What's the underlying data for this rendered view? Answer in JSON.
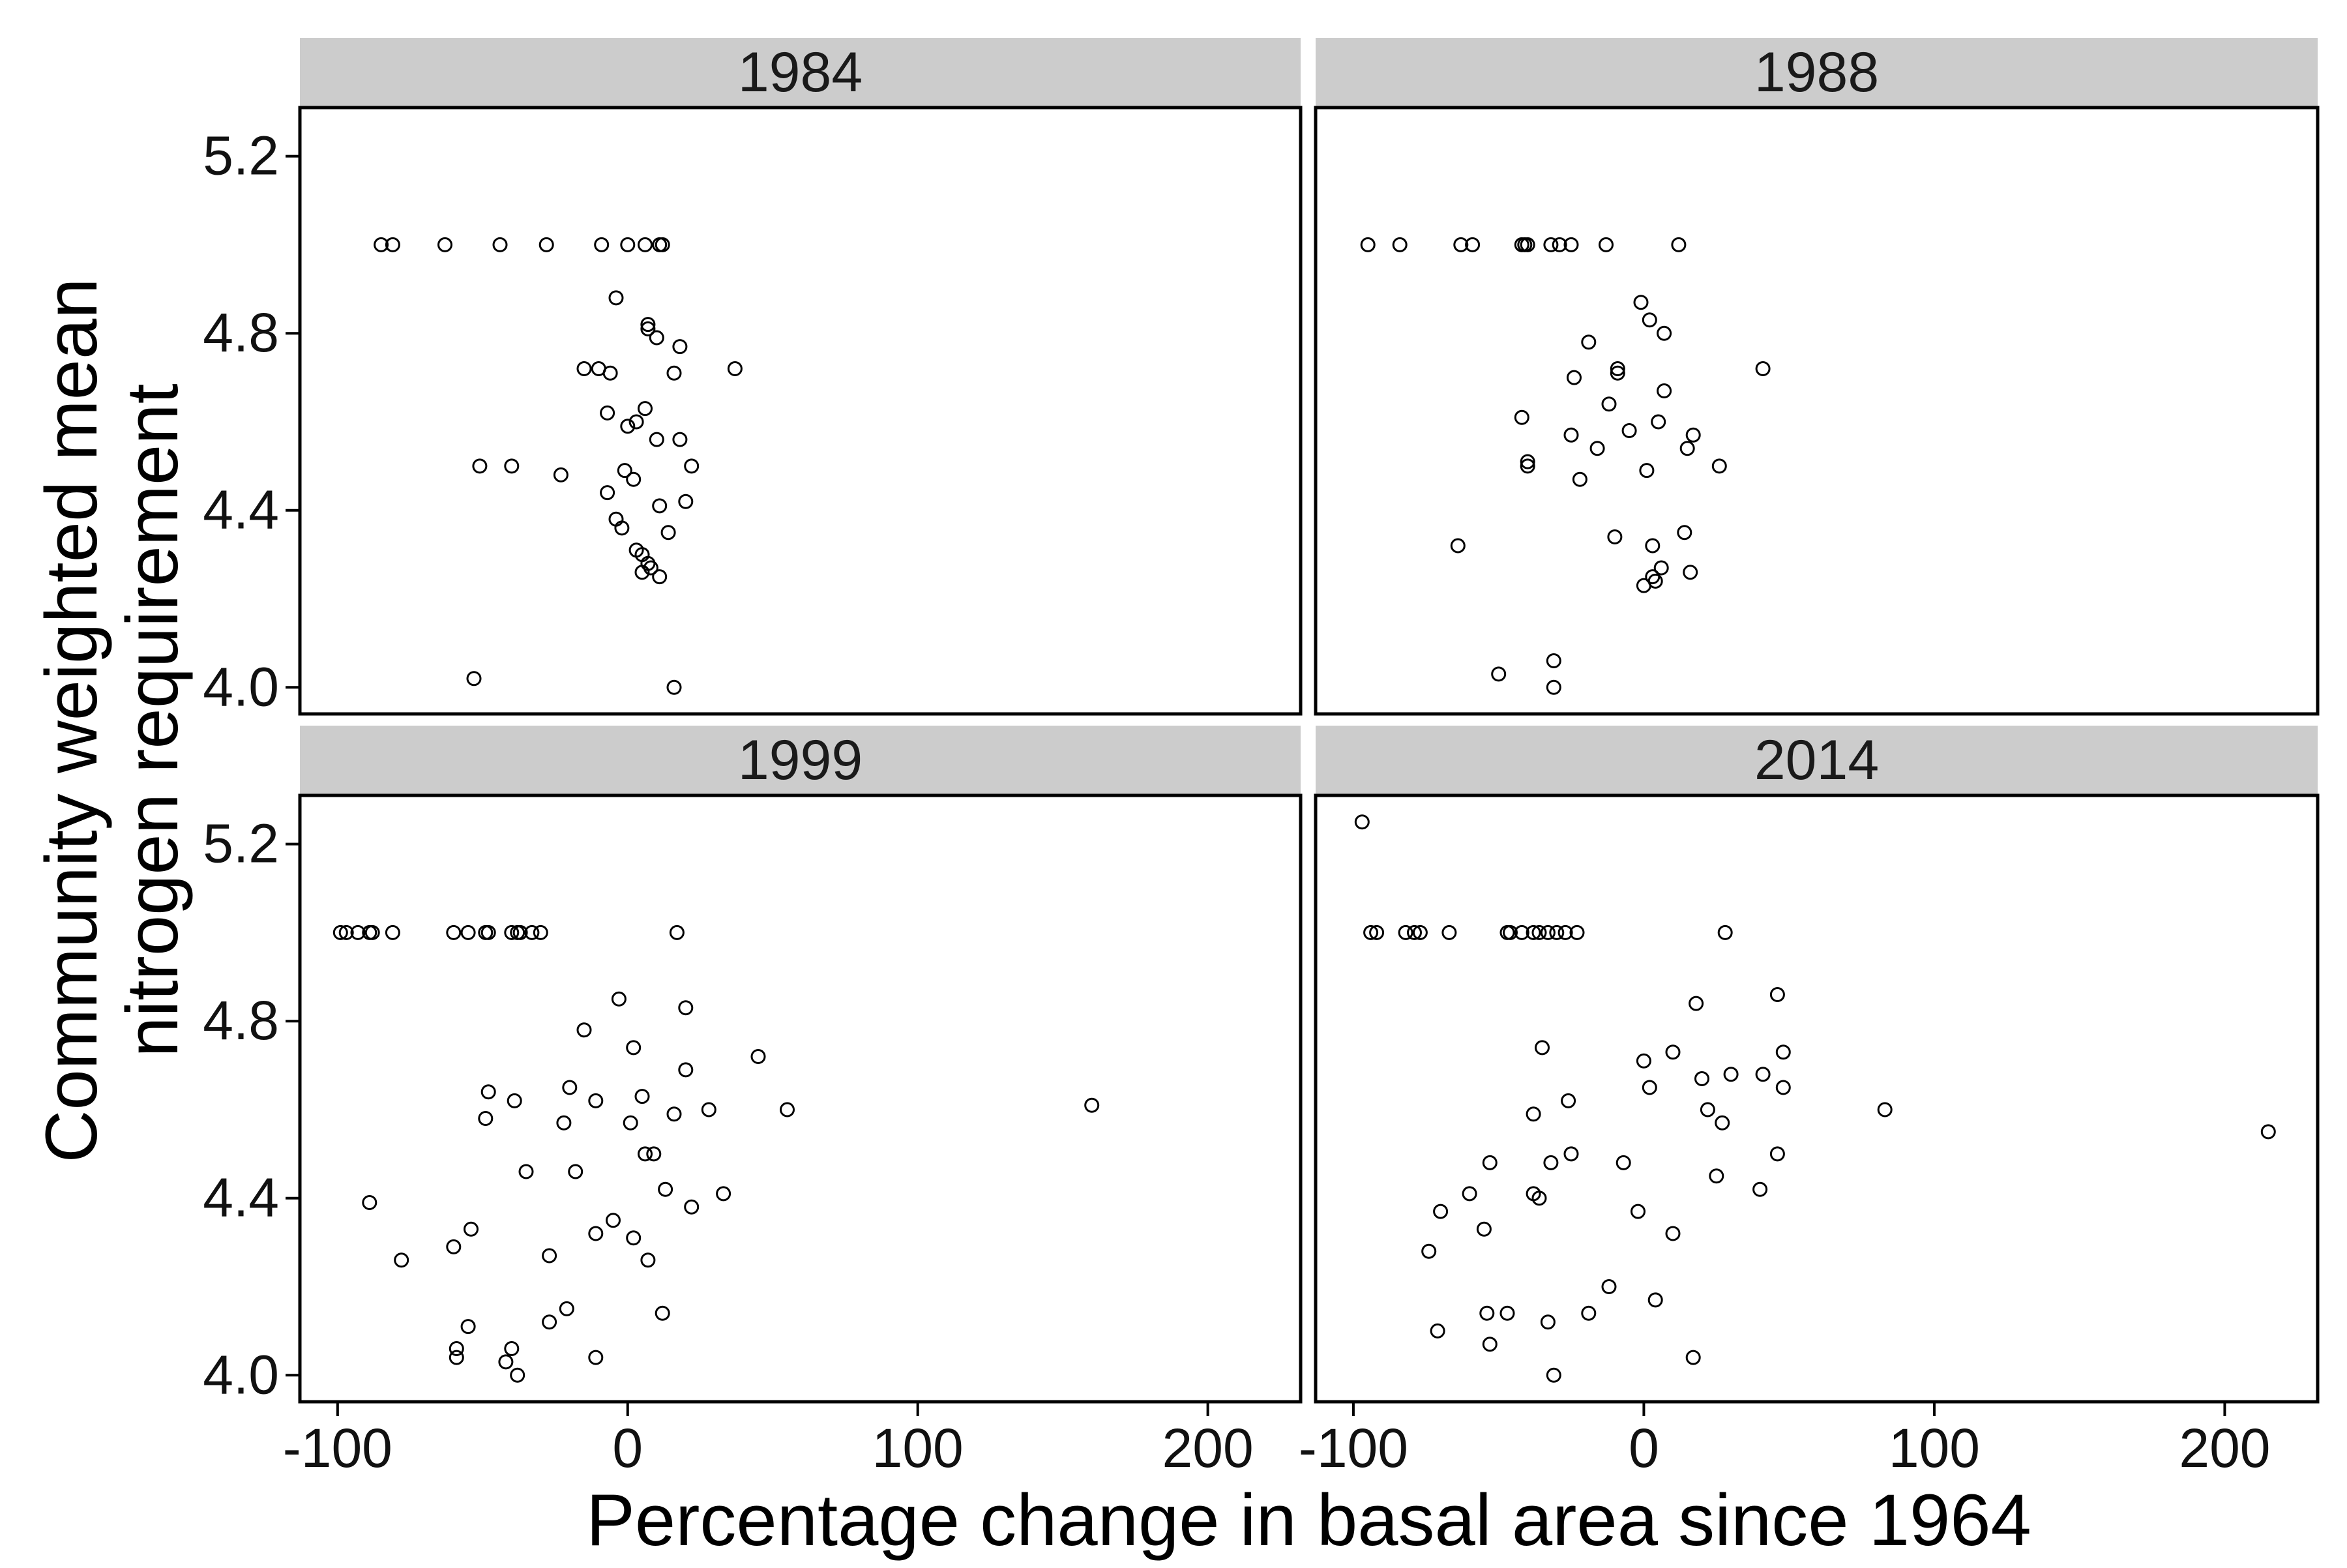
{
  "chart_data": {
    "type": "scatter",
    "layout": "faceted 2x2 grid, shared axes",
    "xlabel": "Percentage change in basal area since 1964",
    "ylabel_lines": [
      "Community weighted mean",
      "nitrogen requirement"
    ],
    "xlim": [
      -113,
      232
    ],
    "ylim": [
      3.94,
      5.31
    ],
    "xticks": [
      -100,
      0,
      100,
      200
    ],
    "xtick_labels": [
      "-100",
      "0",
      "100",
      "200"
    ],
    "yticks": [
      4.0,
      4.4,
      4.8,
      5.2
    ],
    "ytick_labels": [
      "4.0",
      "4.4",
      "4.8",
      "5.2"
    ],
    "grid": false,
    "legend": "none",
    "marker": "open circle",
    "colors": {
      "strip_background": "#cccccc",
      "panel_border": "#000000",
      "point_stroke": "#000000",
      "background": "#ffffff"
    },
    "panels": [
      {
        "title": "1984",
        "points": [
          [
            -85,
            5.0
          ],
          [
            -81,
            5.0
          ],
          [
            -63,
            5.0
          ],
          [
            -44,
            5.0
          ],
          [
            -28,
            5.0
          ],
          [
            -9,
            5.0
          ],
          [
            0,
            5.0
          ],
          [
            6,
            5.0
          ],
          [
            11,
            5.0
          ],
          [
            12,
            5.0
          ],
          [
            -4,
            4.88
          ],
          [
            7,
            4.82
          ],
          [
            7,
            4.81
          ],
          [
            10,
            4.79
          ],
          [
            18,
            4.77
          ],
          [
            -15,
            4.72
          ],
          [
            -10,
            4.72
          ],
          [
            -6,
            4.71
          ],
          [
            16,
            4.71
          ],
          [
            37,
            4.72
          ],
          [
            6,
            4.63
          ],
          [
            -7,
            4.62
          ],
          [
            3,
            4.6
          ],
          [
            0,
            4.59
          ],
          [
            10,
            4.56
          ],
          [
            18,
            4.56
          ],
          [
            -51,
            4.5
          ],
          [
            -40,
            4.5
          ],
          [
            22,
            4.5
          ],
          [
            -23,
            4.48
          ],
          [
            -1,
            4.49
          ],
          [
            2,
            4.47
          ],
          [
            -7,
            4.44
          ],
          [
            20,
            4.42
          ],
          [
            11,
            4.41
          ],
          [
            -4,
            4.38
          ],
          [
            -2,
            4.36
          ],
          [
            14,
            4.35
          ],
          [
            3,
            4.31
          ],
          [
            5,
            4.3
          ],
          [
            7,
            4.28
          ],
          [
            8,
            4.27
          ],
          [
            5,
            4.26
          ],
          [
            11,
            4.25
          ],
          [
            -53,
            4.02
          ],
          [
            16,
            4.0
          ]
        ]
      },
      {
        "title": "1988",
        "points": [
          [
            -95,
            5.0
          ],
          [
            -84,
            5.0
          ],
          [
            -63,
            5.0
          ],
          [
            -59,
            5.0
          ],
          [
            -42,
            5.0
          ],
          [
            -41,
            5.0
          ],
          [
            -40,
            5.0
          ],
          [
            -32,
            5.0
          ],
          [
            -29,
            5.0
          ],
          [
            -25,
            5.0
          ],
          [
            -13,
            5.0
          ],
          [
            12,
            5.0
          ],
          [
            -1,
            4.87
          ],
          [
            2,
            4.83
          ],
          [
            7,
            4.8
          ],
          [
            -19,
            4.78
          ],
          [
            -9,
            4.72
          ],
          [
            -9,
            4.71
          ],
          [
            -24,
            4.7
          ],
          [
            41,
            4.72
          ],
          [
            7,
            4.67
          ],
          [
            -12,
            4.64
          ],
          [
            -42,
            4.61
          ],
          [
            5,
            4.6
          ],
          [
            -5,
            4.58
          ],
          [
            -25,
            4.57
          ],
          [
            17,
            4.57
          ],
          [
            -16,
            4.54
          ],
          [
            15,
            4.54
          ],
          [
            -40,
            4.51
          ],
          [
            -40,
            4.5
          ],
          [
            1,
            4.49
          ],
          [
            26,
            4.5
          ],
          [
            -22,
            4.47
          ],
          [
            -10,
            4.34
          ],
          [
            14,
            4.35
          ],
          [
            -64,
            4.32
          ],
          [
            3,
            4.32
          ],
          [
            6,
            4.27
          ],
          [
            16,
            4.26
          ],
          [
            3,
            4.25
          ],
          [
            4,
            4.24
          ],
          [
            0,
            4.23
          ],
          [
            -31,
            4.06
          ],
          [
            -50,
            4.03
          ],
          [
            -31,
            4.0
          ]
        ]
      },
      {
        "title": "1999",
        "points": [
          [
            -99,
            5.0
          ],
          [
            -97,
            5.0
          ],
          [
            -93,
            5.0
          ],
          [
            -89,
            5.0
          ],
          [
            -88,
            5.0
          ],
          [
            -81,
            5.0
          ],
          [
            -60,
            5.0
          ],
          [
            -55,
            5.0
          ],
          [
            -49,
            5.0
          ],
          [
            -48,
            5.0
          ],
          [
            -40,
            5.0
          ],
          [
            -38,
            5.0
          ],
          [
            -37,
            5.0
          ],
          [
            -33,
            5.0
          ],
          [
            -30,
            5.0
          ],
          [
            17,
            5.0
          ],
          [
            -3,
            4.85
          ],
          [
            20,
            4.83
          ],
          [
            -15,
            4.78
          ],
          [
            2,
            4.74
          ],
          [
            45,
            4.72
          ],
          [
            20,
            4.69
          ],
          [
            -48,
            4.64
          ],
          [
            -20,
            4.65
          ],
          [
            -39,
            4.62
          ],
          [
            -11,
            4.62
          ],
          [
            5,
            4.63
          ],
          [
            55,
            4.6
          ],
          [
            160,
            4.61
          ],
          [
            28,
            4.6
          ],
          [
            -49,
            4.58
          ],
          [
            -22,
            4.57
          ],
          [
            1,
            4.57
          ],
          [
            16,
            4.59
          ],
          [
            6,
            4.5
          ],
          [
            9,
            4.5
          ],
          [
            -18,
            4.46
          ],
          [
            -35,
            4.46
          ],
          [
            13,
            4.42
          ],
          [
            33,
            4.41
          ],
          [
            -89,
            4.39
          ],
          [
            22,
            4.38
          ],
          [
            -5,
            4.35
          ],
          [
            -54,
            4.33
          ],
          [
            -11,
            4.32
          ],
          [
            2,
            4.31
          ],
          [
            -60,
            4.29
          ],
          [
            -27,
            4.27
          ],
          [
            -78,
            4.26
          ],
          [
            7,
            4.26
          ],
          [
            -21,
            4.15
          ],
          [
            12,
            4.14
          ],
          [
            -27,
            4.12
          ],
          [
            -55,
            4.11
          ],
          [
            -59,
            4.06
          ],
          [
            -40,
            4.06
          ],
          [
            -59,
            4.04
          ],
          [
            -42,
            4.03
          ],
          [
            -11,
            4.04
          ],
          [
            -38,
            4.0
          ]
        ]
      },
      {
        "title": "2014",
        "points": [
          [
            -97,
            5.25
          ],
          [
            -94,
            5.0
          ],
          [
            -92,
            5.0
          ],
          [
            -82,
            5.0
          ],
          [
            -79,
            5.0
          ],
          [
            -77,
            5.0
          ],
          [
            -67,
            5.0
          ],
          [
            -47,
            5.0
          ],
          [
            -46,
            5.0
          ],
          [
            -42,
            5.0
          ],
          [
            -38,
            5.0
          ],
          [
            -36,
            5.0
          ],
          [
            -33,
            5.0
          ],
          [
            -30,
            5.0
          ],
          [
            -27,
            5.0
          ],
          [
            -23,
            5.0
          ],
          [
            28,
            5.0
          ],
          [
            46,
            4.86
          ],
          [
            18,
            4.84
          ],
          [
            -35,
            4.74
          ],
          [
            10,
            4.73
          ],
          [
            48,
            4.73
          ],
          [
            0,
            4.71
          ],
          [
            41,
            4.68
          ],
          [
            30,
            4.68
          ],
          [
            20,
            4.67
          ],
          [
            2,
            4.65
          ],
          [
            48,
            4.65
          ],
          [
            -26,
            4.62
          ],
          [
            22,
            4.6
          ],
          [
            83,
            4.6
          ],
          [
            -38,
            4.59
          ],
          [
            27,
            4.57
          ],
          [
            215,
            4.55
          ],
          [
            46,
            4.5
          ],
          [
            -25,
            4.5
          ],
          [
            -32,
            4.48
          ],
          [
            -53,
            4.48
          ],
          [
            -7,
            4.48
          ],
          [
            25,
            4.45
          ],
          [
            -38,
            4.41
          ],
          [
            -60,
            4.41
          ],
          [
            40,
            4.42
          ],
          [
            -36,
            4.4
          ],
          [
            -70,
            4.37
          ],
          [
            -2,
            4.37
          ],
          [
            -55,
            4.33
          ],
          [
            10,
            4.32
          ],
          [
            -74,
            4.28
          ],
          [
            -12,
            4.2
          ],
          [
            4,
            4.17
          ],
          [
            -19,
            4.14
          ],
          [
            -54,
            4.14
          ],
          [
            -47,
            4.14
          ],
          [
            -33,
            4.12
          ],
          [
            -71,
            4.1
          ],
          [
            -53,
            4.07
          ],
          [
            17,
            4.04
          ],
          [
            -31,
            4.0
          ]
        ]
      }
    ]
  }
}
